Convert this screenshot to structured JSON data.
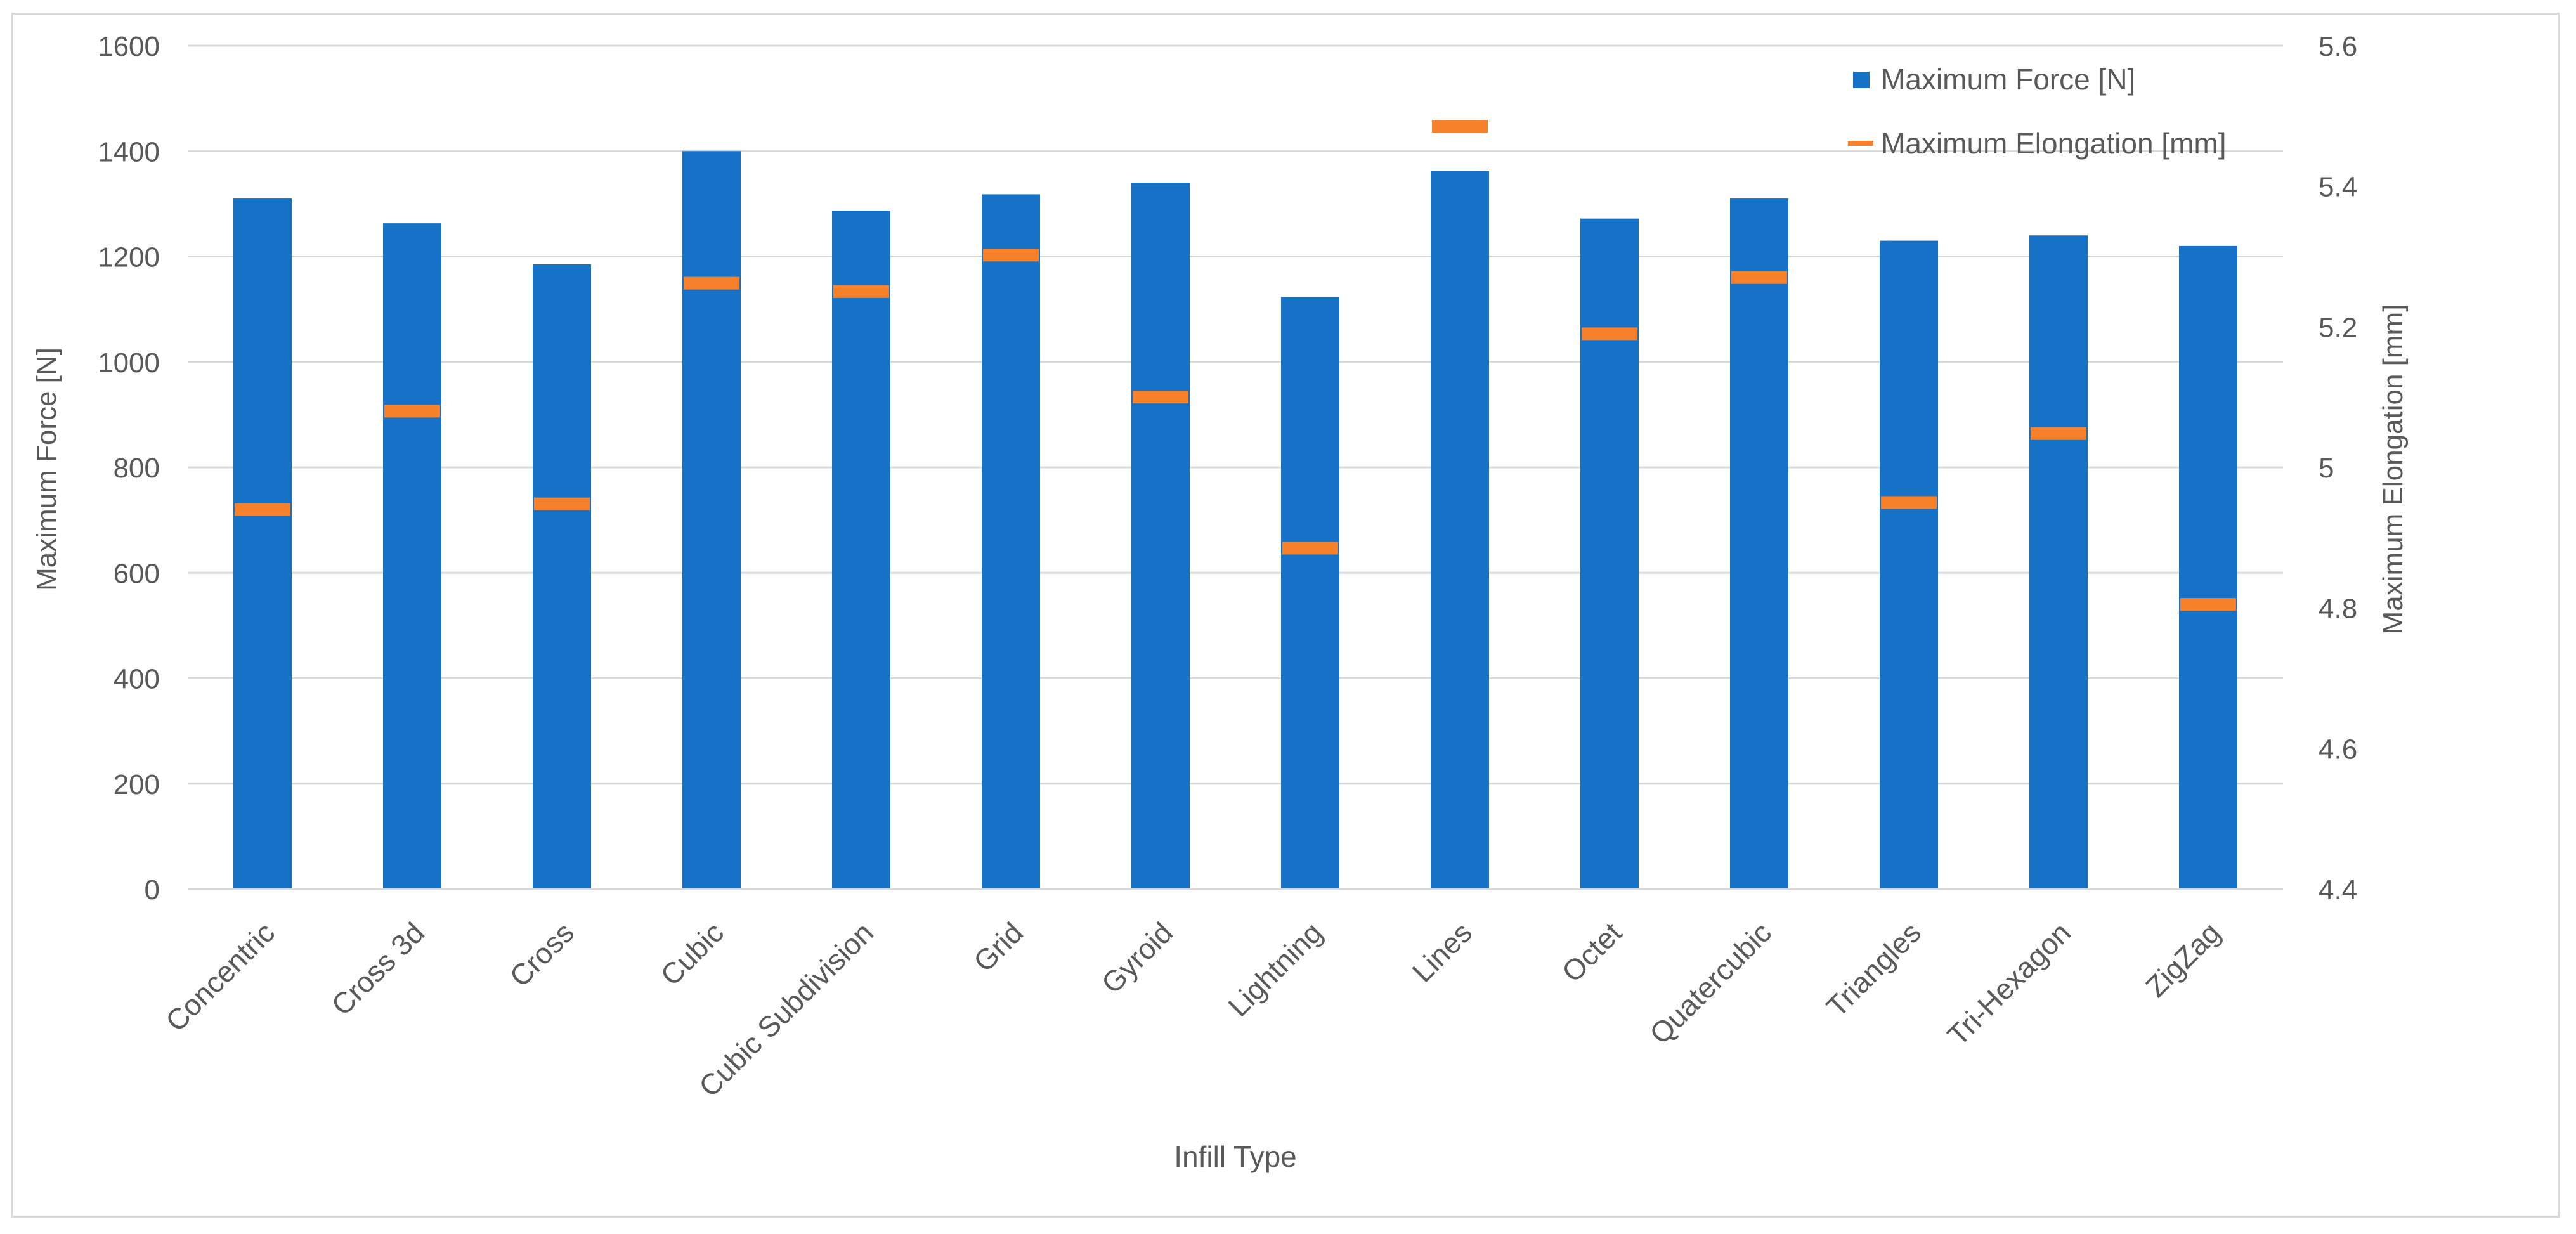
{
  "chart_data": {
    "type": "bar",
    "title": "",
    "xlabel": "Infill Type",
    "ylabel": "Maximum Force [N]",
    "y2label": "Maximum Elongation [mm]",
    "categories": [
      "Concentric",
      "Cross 3d",
      "Cross",
      "Cubic",
      "Cubic Subdivision",
      "Grid",
      "Gyroid",
      "Lightning",
      "Lines",
      "Octet",
      "Quatercubic",
      "Triangles",
      "Tri-Hexagon",
      "ZigZag"
    ],
    "series": [
      {
        "name": "Maximum Force [N]",
        "type": "bar",
        "axis": "left",
        "color": "#1572C7",
        "values": [
          1310,
          1263,
          1185,
          1400,
          1287,
          1318,
          1340,
          1123,
          1362,
          1272,
          1310,
          1230,
          1240,
          1220
        ]
      },
      {
        "name": "Maximum Elongation [mm]",
        "type": "marker",
        "axis": "right",
        "color": "#F7812A",
        "values": [
          4.94,
          5.08,
          4.948,
          5.262,
          5.25,
          5.302,
          5.1,
          4.885,
          5.485,
          5.19,
          5.27,
          4.95,
          5.048,
          4.805
        ]
      }
    ],
    "ylim": [
      0,
      1600
    ],
    "yticks": [
      "0",
      "200",
      "400",
      "600",
      "800",
      "1000",
      "1200",
      "1400",
      "1600"
    ],
    "y2lim": [
      4.4,
      5.6
    ],
    "y2ticks": [
      "4.4",
      "4.6",
      "4.8",
      "5",
      "5.2",
      "5.4",
      "5.6"
    ],
    "grid": true,
    "legend_position": "top-right"
  }
}
